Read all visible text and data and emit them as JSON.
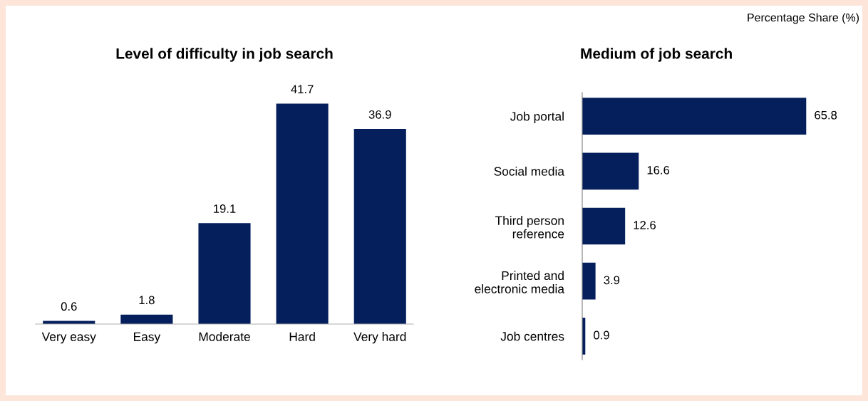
{
  "chart_data": [
    {
      "type": "bar",
      "title": "Level of difficulty in job search",
      "categories": [
        "Very easy",
        "Easy",
        "Moderate",
        "Hard",
        "Very hard"
      ],
      "values": [
        0.6,
        1.8,
        19.1,
        41.7,
        36.9
      ],
      "color": "#041f5c",
      "data_labels": true,
      "grid": false,
      "legend": false,
      "tick_labels": "x"
    },
    {
      "type": "bar",
      "orientation": "horizontal",
      "title": "Medium of job search",
      "categories": [
        "Job portal",
        "Social media",
        "Third person\nreference",
        "Printed and\nelectronic media",
        "Job centres"
      ],
      "values": [
        65.8,
        16.6,
        12.6,
        3.9,
        0.9
      ],
      "color": "#041f5c",
      "data_labels": true,
      "grid": false,
      "legend": false,
      "tick_labels": "y",
      "annotations": [
        "Percentage Share (%)"
      ]
    }
  ]
}
